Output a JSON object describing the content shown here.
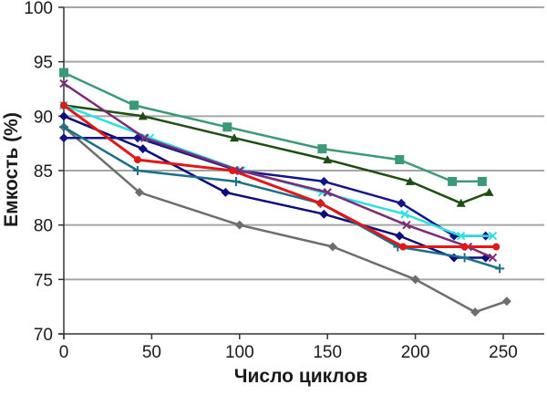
{
  "chart_data": {
    "type": "line",
    "title": "",
    "xlabel": "Число циклов",
    "ylabel": "Емкость (%)",
    "xlim": [
      0,
      250
    ],
    "ylim": [
      70,
      100
    ],
    "x_ticks": [
      0,
      50,
      100,
      150,
      200,
      250
    ],
    "y_ticks": [
      70,
      75,
      80,
      85,
      90,
      95,
      100
    ],
    "grid": "horizontal",
    "legend": "none",
    "series": [
      {
        "name": "gray",
        "color": "#6d6d6d",
        "marker": "diamond",
        "x": [
          0,
          43,
          100,
          153,
          200,
          234,
          252
        ],
        "y": [
          89,
          83,
          80,
          78,
          75,
          72,
          73
        ]
      },
      {
        "name": "teal-green",
        "color": "#3a9a78",
        "marker": "square",
        "x": [
          0,
          40,
          93,
          147,
          191,
          221,
          238
        ],
        "y": [
          94,
          91,
          89,
          87,
          86,
          84,
          84
        ]
      },
      {
        "name": "dark-green",
        "color": "#1f4d14",
        "marker": "triangle",
        "x": [
          0,
          45,
          97,
          150,
          197,
          226,
          242
        ],
        "y": [
          91,
          90,
          88,
          86,
          84,
          82,
          83
        ]
      },
      {
        "name": "navy",
        "color": "#0c0c7a",
        "marker": "diamond",
        "x": [
          0,
          45,
          92,
          148,
          191,
          222,
          240
        ],
        "y": [
          90,
          87,
          83,
          81,
          79,
          77,
          77
        ]
      },
      {
        "name": "blue",
        "color": "#15158a",
        "marker": "diamond",
        "x": [
          0,
          42,
          99,
          148,
          192,
          222,
          240
        ],
        "y": [
          88,
          88,
          85,
          84,
          82,
          79,
          79
        ]
      },
      {
        "name": "dark-teal",
        "color": "#1a6f8a",
        "marker": "plus",
        "x": [
          0,
          42,
          98,
          146,
          190,
          228,
          248
        ],
        "y": [
          89,
          85,
          84,
          82,
          78,
          77,
          76
        ]
      },
      {
        "name": "cyan",
        "color": "#2ee0e0",
        "marker": "cross",
        "x": [
          0,
          49,
          101,
          147,
          194,
          226,
          244
        ],
        "y": [
          91,
          88,
          85,
          83,
          81,
          79,
          79
        ]
      },
      {
        "name": "purple",
        "color": "#7c2b79",
        "marker": "cross",
        "x": [
          0,
          46,
          100,
          150,
          195,
          230,
          244
        ],
        "y": [
          93,
          88,
          85,
          83,
          80,
          78,
          77
        ]
      },
      {
        "name": "red",
        "color": "#e01818",
        "marker": "circle",
        "x": [
          0,
          42,
          96,
          146,
          193,
          228,
          246
        ],
        "y": [
          91,
          86,
          85,
          82,
          78,
          78,
          78
        ]
      }
    ]
  }
}
